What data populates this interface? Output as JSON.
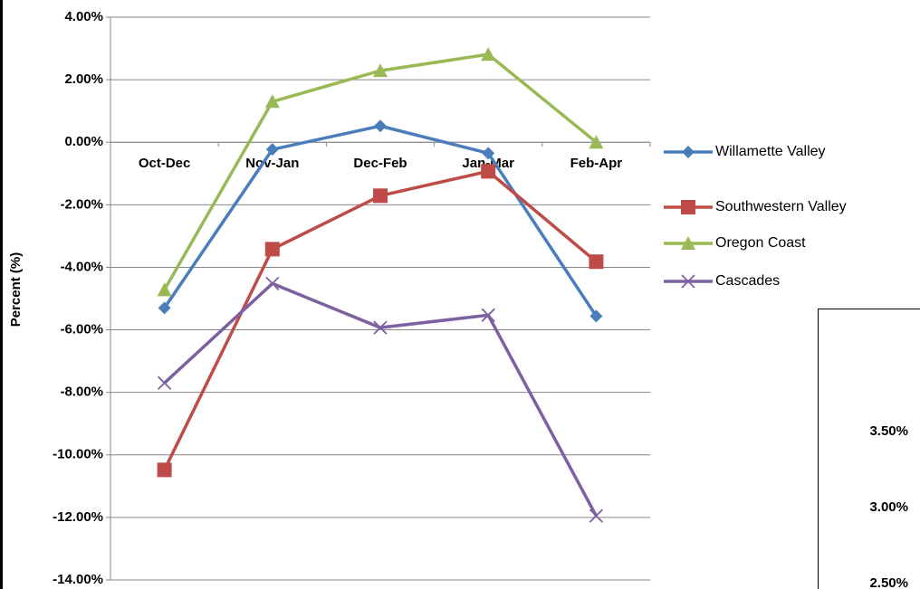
{
  "chart_data": [
    {
      "type": "line",
      "y_label": "Percent (%)",
      "categories": [
        "Oct-Dec",
        "Nov-Jan",
        "Dec-Feb",
        "Jan-Mar",
        "Feb-Apr"
      ],
      "series": [
        {
          "name": "Willamette Valley",
          "color": "#4a7ebb",
          "marker": "diamond",
          "values": [
            -5.3,
            -0.23,
            0.52,
            -0.35,
            -5.56
          ]
        },
        {
          "name": "Southwestern Valley",
          "color": "#be4b48",
          "marker": "square",
          "values": [
            -10.48,
            -3.42,
            -1.71,
            -0.93,
            -3.82
          ]
        },
        {
          "name": "Oregon Coast",
          "color": "#98b954",
          "marker": "triangle",
          "values": [
            -4.72,
            1.3,
            2.29,
            2.81,
            0.0
          ]
        },
        {
          "name": "Cascades",
          "color": "#7d60a0",
          "marker": "x",
          "values": [
            -7.7,
            -4.52,
            -5.93,
            -5.53,
            -11.95
          ]
        }
      ],
      "ylim": [
        -14,
        4
      ],
      "yticks": [
        {
          "value": 4,
          "label": "4.00%"
        },
        {
          "value": 2,
          "label": "2.00%"
        },
        {
          "value": 0,
          "label": "0.00%"
        },
        {
          "value": -2,
          "label": "-2.00%"
        },
        {
          "value": -4,
          "label": "-4.00%"
        },
        {
          "value": -6,
          "label": "-6.00%"
        },
        {
          "value": -8,
          "label": "-8.00%"
        },
        {
          "value": -10,
          "label": "-10.00%"
        },
        {
          "value": -12,
          "label": "-12.00%"
        },
        {
          "value": -14,
          "label": "-14.00%"
        }
      ],
      "grid": true,
      "legend": "right"
    },
    {
      "type": "line",
      "ylim": [
        2.5,
        4.3
      ],
      "yticks": [
        {
          "value": 3.5,
          "label": "3.50%"
        },
        {
          "value": 3.0,
          "label": "3.00%"
        },
        {
          "value": 2.5,
          "label": "2.50%"
        }
      ]
    }
  ]
}
